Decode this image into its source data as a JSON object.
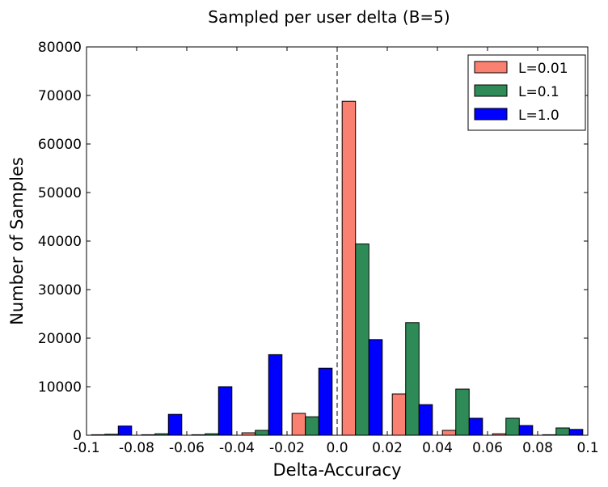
{
  "chart_data": {
    "type": "bar",
    "title": "Sampled per user delta (B=5)",
    "xlabel": "Delta-Accuracy",
    "ylabel": "Number of Samples",
    "xlim": [
      -0.1,
      0.1
    ],
    "ylim": [
      0,
      80000
    ],
    "x_ticks": [
      "-0.1",
      "-0.08",
      "-0.06",
      "-0.04",
      "-0.02",
      "0.0",
      "0.02",
      "0.04",
      "0.06",
      "0.08",
      "0.1"
    ],
    "y_ticks": [
      "0",
      "10000",
      "20000",
      "30000",
      "40000",
      "50000",
      "60000",
      "70000",
      "80000"
    ],
    "bin_edges": [
      -0.1,
      -0.08,
      -0.06,
      -0.04,
      -0.02,
      0.0,
      0.02,
      0.04,
      0.06,
      0.08,
      0.1
    ],
    "reference_line_x": 0.0,
    "legend_position": "top-right",
    "grid": false,
    "series": [
      {
        "name": "L=0.01",
        "color": "#fa8072",
        "values": [
          100,
          100,
          100,
          500,
          4500,
          68800,
          8500,
          1000,
          300,
          100
        ]
      },
      {
        "name": "L=0.1",
        "color": "#2e8b57",
        "values": [
          200,
          300,
          300,
          1000,
          3800,
          39400,
          23200,
          9500,
          3500,
          1500
        ]
      },
      {
        "name": "L=1.0",
        "color": "#0000ff",
        "values": [
          1900,
          4300,
          10000,
          16600,
          13800,
          19700,
          6300,
          3500,
          2000,
          1200
        ]
      }
    ]
  }
}
